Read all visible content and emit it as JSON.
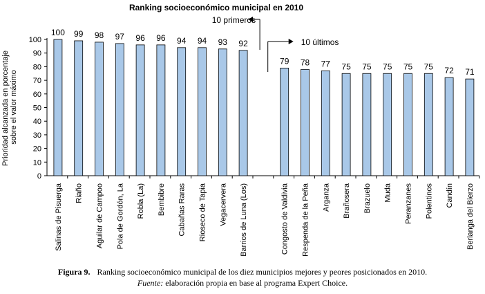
{
  "chart_data": {
    "type": "bar",
    "title": "Ranking socioeconómico municipal en 2010",
    "ylabel": "Prioridad alcanzada en porcentaje sobre el valor máximo",
    "xlabel": "",
    "ylim": [
      0,
      100
    ],
    "yticks": [
      0,
      10,
      20,
      30,
      40,
      50,
      60,
      70,
      80,
      90,
      100
    ],
    "grid": false,
    "bar_color": "#a9c8e8",
    "groups": [
      {
        "label": "10 primeros",
        "categories": [
          "Salinas de Pisuerga",
          "Riaño",
          "Aguilar de Campoo",
          "Pola de Gordón, La",
          "Robla (La)",
          "Bembibre",
          "Cabañas Raras",
          "Rioseco de Tapia",
          "Vegacervera",
          "Barrios de Luna (Los)"
        ],
        "values": [
          100,
          99,
          98,
          97,
          96,
          96,
          94,
          94,
          93,
          92
        ]
      },
      {
        "label": "10 últimos",
        "categories": [
          "Congosto de Valdivia",
          "Respenda de la Peña",
          "Arganza",
          "Brañosera",
          "Brazuelo",
          "Muda",
          "Peranzanes",
          "Polentinos",
          "Candín",
          "Berlanga del Bierzo"
        ],
        "values": [
          79,
          78,
          77,
          75,
          75,
          75,
          75,
          75,
          72,
          71
        ]
      }
    ]
  },
  "caption": {
    "figure_label": "Figura 9.",
    "text": "Ranking socioeconómico municipal de los diez municipios mejores y peores posicionados en 2010.",
    "source_label": "Fuente:",
    "source_text": "elaboración propia en base al programa Expert Choice."
  }
}
